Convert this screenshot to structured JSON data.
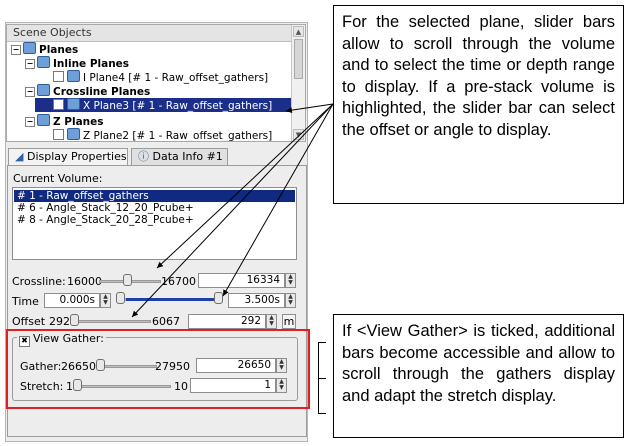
{
  "scene_objects": {
    "header": "Scene Objects",
    "items": [
      {
        "label": "Planes",
        "level": 0
      },
      {
        "label": "Inline Planes",
        "level": 1
      },
      {
        "label": "I Plane4 [# 1 - Raw_offset_gathers]",
        "level": 2
      },
      {
        "label": "Crossline Planes",
        "level": 1
      },
      {
        "label": "X Plane3 [# 1 - Raw_offset_gathers]",
        "level": 2
      },
      {
        "label": "Z Planes",
        "level": 1
      },
      {
        "label": "Z Plane2 [# 1 - Raw_offset_gathers]",
        "level": 2
      }
    ]
  },
  "tabs": [
    "Display Properties",
    "Data Info #1"
  ],
  "current_volume": {
    "label": "Current Volume:",
    "items": [
      "# 1 - Raw_offset_gathers",
      "# 6 - Angle_Stack_12_20_Pcube+",
      "# 8 - Angle_Stack_20_28_Pcube+"
    ]
  },
  "sliders": {
    "crossline": {
      "label": "Crossline:",
      "min": "16000",
      "max": "16700",
      "value": "16334",
      "fraction": 0.48
    },
    "time": {
      "label": "Time",
      "min": "0.000s",
      "value": "3.500s",
      "fraction": 1.0
    },
    "offset": {
      "label": "Offset",
      "min": "292",
      "max": "6067",
      "value": "292",
      "unit": "m",
      "fraction": 0.0
    }
  },
  "view_gather": {
    "label": "View Gather:",
    "checked": true,
    "check_glyph": "✖",
    "gather": {
      "label": "Gather:",
      "min": "26650",
      "max": "27950",
      "value": "26650",
      "fraction": 0.0
    },
    "stretch": {
      "label": "Stretch:",
      "min": "1",
      "max": "10",
      "value": "1",
      "fraction": 0.0
    }
  },
  "callouts": {
    "top": "For the selected plane, slider bars allow to scroll through the volume and to select the time or depth range to display. If a pre-stack volume is highlighted, the slider bar can select the offset or angle to display.",
    "bottom": "If <View Gather> is ticked, additional bars become accessible and allow to scroll through the gathers display and adapt the stretch display."
  },
  "colors": {
    "highlight": "#1b2f8a",
    "red_frame": "#e02020",
    "slider_fill": "#1f3fa8"
  }
}
